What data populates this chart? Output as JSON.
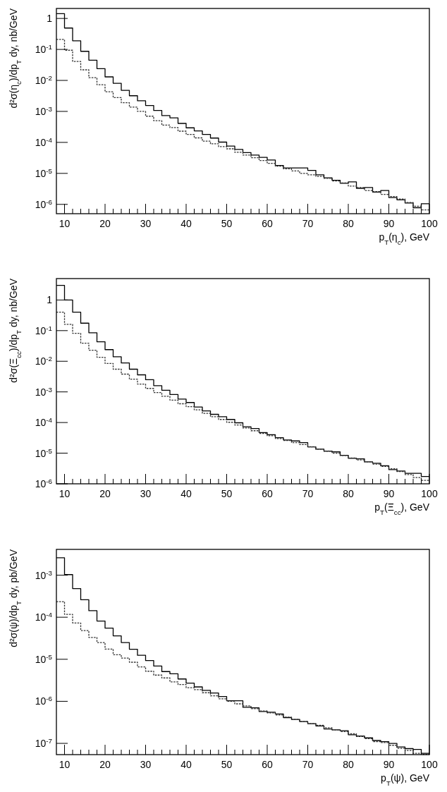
{
  "chart_data": [
    {
      "type": "histogram",
      "xlabel": "p$_{T}$(η$_{c}$), GeV",
      "ylabel": "d²σ(η$_{c}$)/dp$_{T}$ dy, nb/GeV",
      "log": "y",
      "grid": false,
      "bins": [
        8,
        10,
        12,
        14,
        16,
        18,
        20,
        22,
        24,
        26,
        28,
        30,
        32,
        34,
        36,
        38,
        40,
        42,
        44,
        46,
        48,
        50,
        52,
        54,
        56,
        58,
        60,
        62,
        64,
        66,
        68,
        70,
        72,
        74,
        76,
        78,
        80,
        82,
        84,
        86,
        88,
        90,
        92,
        94,
        96,
        98,
        100
      ],
      "xlim": [
        8,
        100
      ],
      "xticks": [
        10,
        {
          "value": 12,
          "label": null
        },
        {
          "value": 14,
          "label": null
        },
        {
          "value": 16,
          "label": null
        },
        {
          "value": 18,
          "label": null
        },
        20,
        {
          "value": 22,
          "label": null
        },
        {
          "value": 24,
          "label": null
        },
        {
          "value": 26,
          "label": null
        },
        {
          "value": 28,
          "label": null
        },
        30,
        {
          "value": 32,
          "label": null
        },
        {
          "value": 34,
          "label": null
        },
        {
          "value": 36,
          "label": null
        },
        {
          "value": 38,
          "label": null
        },
        40,
        {
          "value": 42,
          "label": null
        },
        {
          "value": 44,
          "label": null
        },
        {
          "value": 46,
          "label": null
        },
        {
          "value": 48,
          "label": null
        },
        50,
        {
          "value": 52,
          "label": null
        },
        {
          "value": 54,
          "label": null
        },
        {
          "value": 56,
          "label": null
        },
        {
          "value": 58,
          "label": null
        },
        60,
        {
          "value": 62,
          "label": null
        },
        {
          "value": 64,
          "label": null
        },
        {
          "value": 66,
          "label": null
        },
        {
          "value": 68,
          "label": null
        },
        70,
        {
          "value": 72,
          "label": null
        },
        {
          "value": 74,
          "label": null
        },
        {
          "value": 76,
          "label": null
        },
        {
          "value": 78,
          "label": null
        },
        80,
        {
          "value": 82,
          "label": null
        },
        {
          "value": 84,
          "label": null
        },
        {
          "value": 86,
          "label": null
        },
        {
          "value": 88,
          "label": null
        },
        90,
        {
          "value": 92,
          "label": null
        },
        {
          "value": 94,
          "label": null
        },
        {
          "value": 96,
          "label": null
        },
        {
          "value": 98,
          "label": null
        },
        100
      ],
      "ylim": [
        5e-07,
        2.1
      ],
      "yticks": [
        {
          "value": 1e-06,
          "label": "10$^{-6}$"
        },
        {
          "value": 1e-05,
          "label": "10$^{-5}$"
        },
        {
          "value": 0.0001,
          "label": "10$^{-4}$"
        },
        {
          "value": 0.001,
          "label": "10$^{-3}$"
        },
        {
          "value": 0.01,
          "label": "10$^{-2}$"
        },
        {
          "value": 0.1,
          "label": "10$^{-1}$"
        },
        1
      ],
      "series": [
        {
          "color": "#000000",
          "line_style": "solid",
          "values": [
            1.43,
            0.49,
            0.19,
            0.087,
            0.045,
            0.024,
            0.013,
            0.0081,
            0.0048,
            0.0032,
            0.0022,
            0.00155,
            0.00107,
            0.00073,
            0.00062,
            0.00041,
            0.000295,
            0.000235,
            0.00018,
            0.000138,
            0.000102,
            7.6e-05,
            5.9e-05,
            4.7e-05,
            3.9e-05,
            3.3e-05,
            2.7e-05,
            1.8e-05,
            1.5e-05,
            1.5e-05,
            1.5e-05,
            1.25e-05,
            9e-06,
            7.2e-06,
            6e-06,
            4.8e-06,
            5.3e-06,
            3.3e-06,
            3.5e-06,
            2.5e-06,
            2.8e-06,
            1.65e-06,
            1.4e-06,
            1.1e-06,
            7.8e-07,
            1.05e-06
          ]
        },
        {
          "color": "#333333",
          "line_style": "dotted",
          "values": [
            0.21,
            0.094,
            0.041,
            0.022,
            0.0123,
            0.0073,
            0.0043,
            0.0028,
            0.0019,
            0.00138,
            0.001,
            0.0007,
            0.0005,
            0.00036,
            0.0003,
            0.00023,
            0.00018,
            0.00014,
            0.00011,
            9e-05,
            7.3e-05,
            6.2e-05,
            4.8e-05,
            3.9e-05,
            3.2e-05,
            2.6e-05,
            2.1e-05,
            1.7e-05,
            1.4e-05,
            1.2e-05,
            1e-05,
            9e-06,
            8e-06,
            6.9e-06,
            5.7e-06,
            4.9e-06,
            3.9e-06,
            3.5e-06,
            2.8e-06,
            2.6e-06,
            2.1e-06,
            1.8e-06,
            1.5e-06,
            1.15e-06,
            8.7e-07,
            6.6e-07
          ]
        }
      ]
    },
    {
      "type": "histogram",
      "xlabel": "p$_{T}$(Ξ$_{cc}$), GeV",
      "ylabel": "d²σ(Ξ$_{cc}$)/dp$_{T}$ dy, nb/GeV",
      "log": "y",
      "grid": false,
      "bins": [
        8,
        10,
        12,
        14,
        16,
        18,
        20,
        22,
        24,
        26,
        28,
        30,
        32,
        34,
        36,
        38,
        40,
        42,
        44,
        46,
        48,
        50,
        52,
        54,
        56,
        58,
        60,
        62,
        64,
        66,
        68,
        70,
        72,
        74,
        76,
        78,
        80,
        82,
        84,
        86,
        88,
        90,
        92,
        94,
        96,
        98,
        100
      ],
      "xlim": [
        8,
        100
      ],
      "xticks": [
        10,
        {
          "value": 12,
          "label": null
        },
        {
          "value": 14,
          "label": null
        },
        {
          "value": 16,
          "label": null
        },
        {
          "value": 18,
          "label": null
        },
        20,
        {
          "value": 22,
          "label": null
        },
        {
          "value": 24,
          "label": null
        },
        {
          "value": 26,
          "label": null
        },
        {
          "value": 28,
          "label": null
        },
        30,
        {
          "value": 32,
          "label": null
        },
        {
          "value": 34,
          "label": null
        },
        {
          "value": 36,
          "label": null
        },
        {
          "value": 38,
          "label": null
        },
        40,
        {
          "value": 42,
          "label": null
        },
        {
          "value": 44,
          "label": null
        },
        {
          "value": 46,
          "label": null
        },
        {
          "value": 48,
          "label": null
        },
        50,
        {
          "value": 52,
          "label": null
        },
        {
          "value": 54,
          "label": null
        },
        {
          "value": 56,
          "label": null
        },
        {
          "value": 58,
          "label": null
        },
        60,
        {
          "value": 62,
          "label": null
        },
        {
          "value": 64,
          "label": null
        },
        {
          "value": 66,
          "label": null
        },
        {
          "value": 68,
          "label": null
        },
        70,
        {
          "value": 72,
          "label": null
        },
        {
          "value": 74,
          "label": null
        },
        {
          "value": 76,
          "label": null
        },
        {
          "value": 78,
          "label": null
        },
        80,
        {
          "value": 82,
          "label": null
        },
        {
          "value": 84,
          "label": null
        },
        {
          "value": 86,
          "label": null
        },
        {
          "value": 88,
          "label": null
        },
        90,
        {
          "value": 92,
          "label": null
        },
        {
          "value": 94,
          "label": null
        },
        {
          "value": 96,
          "label": null
        },
        {
          "value": 98,
          "label": null
        },
        100
      ],
      "ylim": [
        1e-06,
        5
      ],
      "yticks": [
        {
          "value": 1e-06,
          "label": "10$^{-6}$"
        },
        {
          "value": 1e-05,
          "label": "10$^{-5}$"
        },
        {
          "value": 0.0001,
          "label": "10$^{-4}$"
        },
        {
          "value": 0.001,
          "label": "10$^{-3}$"
        },
        {
          "value": 0.01,
          "label": "10$^{-2}$"
        },
        {
          "value": 0.1,
          "label": "10$^{-1}$"
        },
        1
      ],
      "series": [
        {
          "color": "#000000",
          "line_style": "solid",
          "values": [
            3.0,
            1.0,
            0.4,
            0.175,
            0.085,
            0.043,
            0.024,
            0.014,
            0.0088,
            0.0055,
            0.0036,
            0.0025,
            0.0016,
            0.00113,
            0.00082,
            0.00058,
            0.00045,
            0.00032,
            0.00024,
            0.000185,
            0.000155,
            0.000126,
            9.8e-05,
            7.3e-05,
            6.4e-05,
            4.7e-05,
            4e-05,
            3.2e-05,
            2.7e-05,
            2.5e-05,
            2.2e-05,
            1.6e-05,
            1.35e-05,
            1.17e-05,
            1.1e-05,
            8.5e-06,
            6.8e-06,
            6.5e-06,
            5.2e-06,
            4.7e-06,
            3.9e-06,
            2.9e-06,
            2.6e-06,
            2.2e-06,
            2.2e-06,
            1.74e-06
          ]
        },
        {
          "color": "#333333",
          "line_style": "dotted",
          "values": [
            0.4,
            0.16,
            0.082,
            0.039,
            0.023,
            0.0135,
            0.0085,
            0.0055,
            0.0038,
            0.0026,
            0.0018,
            0.0013,
            0.00095,
            0.00072,
            0.00054,
            0.00041,
            0.00033,
            0.00026,
            0.0002,
            0.000155,
            0.000126,
            0.000102,
            8.3e-05,
            6.6e-05,
            5.4e-05,
            4.4e-05,
            3.7e-05,
            3e-05,
            2.6e-05,
            2.2e-05,
            1.9e-05,
            1.6e-05,
            1.35e-05,
            1.15e-05,
            1e-05,
            8.4e-06,
            7e-06,
            6e-06,
            5.2e-06,
            4.4e-06,
            3.7e-06,
            3.1e-06,
            2.5e-06,
            2e-06,
            1.6e-06,
            1.3e-06
          ]
        }
      ]
    },
    {
      "type": "histogram",
      "xlabel": "p$_{T}$(ψ), GeV",
      "ylabel": "d²σ(ψ)/dp$_{T}$ dy, pb/GeV",
      "log": "y",
      "grid": false,
      "bins": [
        8,
        10,
        12,
        14,
        16,
        18,
        20,
        22,
        24,
        26,
        28,
        30,
        32,
        34,
        36,
        38,
        40,
        42,
        44,
        46,
        48,
        50,
        52,
        54,
        56,
        58,
        60,
        62,
        64,
        66,
        68,
        70,
        72,
        74,
        76,
        78,
        80,
        82,
        84,
        86,
        88,
        90,
        92,
        94,
        96,
        98,
        100
      ],
      "xlim": [
        8,
        100
      ],
      "xticks": [
        10,
        {
          "value": 12,
          "label": null
        },
        {
          "value": 14,
          "label": null
        },
        {
          "value": 16,
          "label": null
        },
        {
          "value": 18,
          "label": null
        },
        20,
        {
          "value": 22,
          "label": null
        },
        {
          "value": 24,
          "label": null
        },
        {
          "value": 26,
          "label": null
        },
        {
          "value": 28,
          "label": null
        },
        30,
        {
          "value": 32,
          "label": null
        },
        {
          "value": 34,
          "label": null
        },
        {
          "value": 36,
          "label": null
        },
        {
          "value": 38,
          "label": null
        },
        40,
        {
          "value": 42,
          "label": null
        },
        {
          "value": 44,
          "label": null
        },
        {
          "value": 46,
          "label": null
        },
        {
          "value": 48,
          "label": null
        },
        50,
        {
          "value": 52,
          "label": null
        },
        {
          "value": 54,
          "label": null
        },
        {
          "value": 56,
          "label": null
        },
        {
          "value": 58,
          "label": null
        },
        60,
        {
          "value": 62,
          "label": null
        },
        {
          "value": 64,
          "label": null
        },
        {
          "value": 66,
          "label": null
        },
        {
          "value": 68,
          "label": null
        },
        70,
        {
          "value": 72,
          "label": null
        },
        {
          "value": 74,
          "label": null
        },
        {
          "value": 76,
          "label": null
        },
        {
          "value": 78,
          "label": null
        },
        80,
        {
          "value": 82,
          "label": null
        },
        {
          "value": 84,
          "label": null
        },
        {
          "value": 86,
          "label": null
        },
        {
          "value": 88,
          "label": null
        },
        90,
        {
          "value": 92,
          "label": null
        },
        {
          "value": 94,
          "label": null
        },
        {
          "value": 96,
          "label": null
        },
        {
          "value": 98,
          "label": null
        },
        100
      ],
      "ylim": [
        5.4e-08,
        0.0041
      ],
      "yticks": [
        {
          "value": 1e-07,
          "label": "10$^{-7}$"
        },
        {
          "value": 1e-06,
          "label": "10$^{-6}$"
        },
        {
          "value": 1e-05,
          "label": "10$^{-5}$"
        },
        {
          "value": 0.0001,
          "label": "10$^{-4}$"
        },
        {
          "value": 0.001,
          "label": "10$^{-3}$"
        }
      ],
      "series": [
        {
          "color": "#000000",
          "line_style": "solid",
          "values": [
            0.0026,
            0.00103,
            0.00048,
            0.00026,
            0.000143,
            8.1e-05,
            5.5e-05,
            3.6e-05,
            2.5e-05,
            1.73e-05,
            1.24e-05,
            9.3e-06,
            6.9e-06,
            5.1e-06,
            4.5e-06,
            3.4e-06,
            2.7e-06,
            2.2e-06,
            1.82e-06,
            1.58e-06,
            1.3e-06,
            1.03e-06,
            1.03e-06,
            7.2e-07,
            7e-07,
            5.7e-07,
            5.5e-07,
            5e-07,
            4.1e-07,
            3.7e-07,
            3.3e-07,
            2.95e-07,
            2.6e-07,
            2.2e-07,
            2.1e-07,
            2e-07,
            1.6e-07,
            1.5e-07,
            1.35e-07,
            1.17e-07,
            1.1e-07,
            1e-07,
            8.2e-08,
            7.5e-08,
            7.2e-08,
            5.8e-08
          ]
        },
        {
          "color": "#333333",
          "line_style": "dotted",
          "values": [
            0.000235,
            0.000117,
            7.3e-05,
            4.8e-05,
            3.3e-05,
            2.5e-05,
            1.75e-05,
            1.28e-05,
            1.07e-05,
            8.5e-06,
            6.6e-06,
            5.2e-06,
            4.2e-06,
            3.6e-06,
            2.9e-06,
            2.5e-06,
            2.1e-06,
            1.9e-06,
            1.6e-06,
            1.35e-06,
            1.15e-06,
            1e-06,
            8.7e-07,
            7.8e-07,
            6.7e-07,
            5.9e-07,
            5.3e-07,
            4.7e-07,
            4.2e-07,
            3.7e-07,
            3.3e-07,
            2.95e-07,
            2.7e-07,
            2.35e-07,
            2.1e-07,
            1.9e-07,
            1.7e-07,
            1.45e-07,
            1.3e-07,
            1.1e-07,
            1.05e-07,
            9e-08,
            7.6e-08,
            6.8e-08,
            5.8e-08,
            5.5e-08
          ]
        }
      ]
    }
  ]
}
